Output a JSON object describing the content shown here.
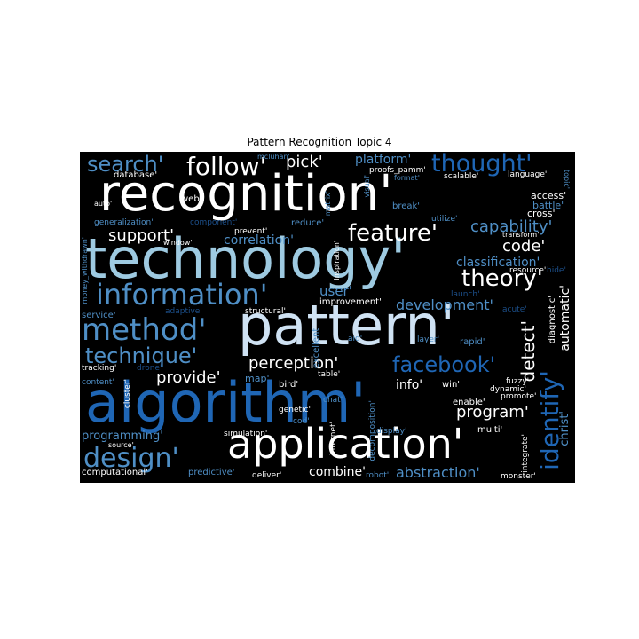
{
  "title": "Pattern Recognition Topic 4",
  "palette": {
    "background": "#000000",
    "white": "#ffffff",
    "pale_blue": "#cfe2f3",
    "light_blue": "#9ecae1",
    "mid_blue": "#4f8fc6",
    "strong_blue": "#1f66b5",
    "dark_blue": "#1c4f8a"
  },
  "words": {
    "recognition": "recognition'",
    "technology": "technology'",
    "pattern": "pattern'",
    "algorithm": "algorithm'",
    "application": "application'",
    "information": "information'",
    "method": "method'",
    "design": "design'",
    "technique": "technique'",
    "search": "search'",
    "follow": "follow'",
    "pick": "pick'",
    "thought": "thought'",
    "feature": "feature'",
    "theory": "theory'",
    "facebook": "facebook'",
    "identify": "identify'",
    "capability": "capability'",
    "code": "code'",
    "classification": "classification'",
    "development": "development'",
    "support": "support'",
    "correlation": "correlation'",
    "perception": "perception'",
    "provide": "provide'",
    "program": "program'",
    "detect": "detect'",
    "user": "user'",
    "platform": "platform'",
    "info": "info'",
    "automatic": "automatic'",
    "abstraction": "abstraction'",
    "combine": "combine'",
    "programming": "programming'",
    "christ": "christ'",
    "database": "database'",
    "mcluhan": "mcluhan'",
    "proofs_pamm": "proofs_pamm'",
    "format": "format'",
    "scalable": "scalable'",
    "language": "language'",
    "access": "access'",
    "battle": "battle'",
    "cross": "cross'",
    "auto": "auto'",
    "web": "web'",
    "break": "break'",
    "utilize": "utilize'",
    "generalization": "generalization'",
    "component": "component'",
    "reduce": "reduce'",
    "matrix": "matrix'",
    "prevent": "prevent'",
    "window": "window'",
    "transform": "transform'",
    "resource": "resource'",
    "hide": "hide'",
    "inspiration": "inspiration'",
    "launch": "launch'",
    "improvement": "improvement'",
    "structural": "structural'",
    "adaptive": "adaptive'",
    "service": "service'",
    "acute": "acute'",
    "diagnostic": "diagnostic'",
    "money_withdrawn": "money_withdrawn'",
    "visual": "visual'",
    "excellent": "excellent'",
    "aid": "aid'",
    "layer": "layer'",
    "rapid": "rapid'",
    "tracking": "tracking'",
    "drone": "drone'",
    "map": "map'",
    "table": "table'",
    "bird": "bird'",
    "content": "content'",
    "cluster": "cluster'",
    "win": "win'",
    "dynamic": "dynamic'",
    "promote": "promote'",
    "fuzzy": "fuzzy'",
    "chat": "chat'",
    "genetic": "genetic'",
    "cod": "cod'",
    "enable": "enable'",
    "decomposition": "decomposition'",
    "multi": "multi'",
    "simulation": "simulation'",
    "display": "display'",
    "internet": "internet'",
    "integrate": "integrate'",
    "predictive": "predictive'",
    "deliver": "deliver'",
    "robot": "robot'",
    "computational": "computational'",
    "monster": "monster'",
    "source": "source'",
    "topic": "topic'"
  }
}
